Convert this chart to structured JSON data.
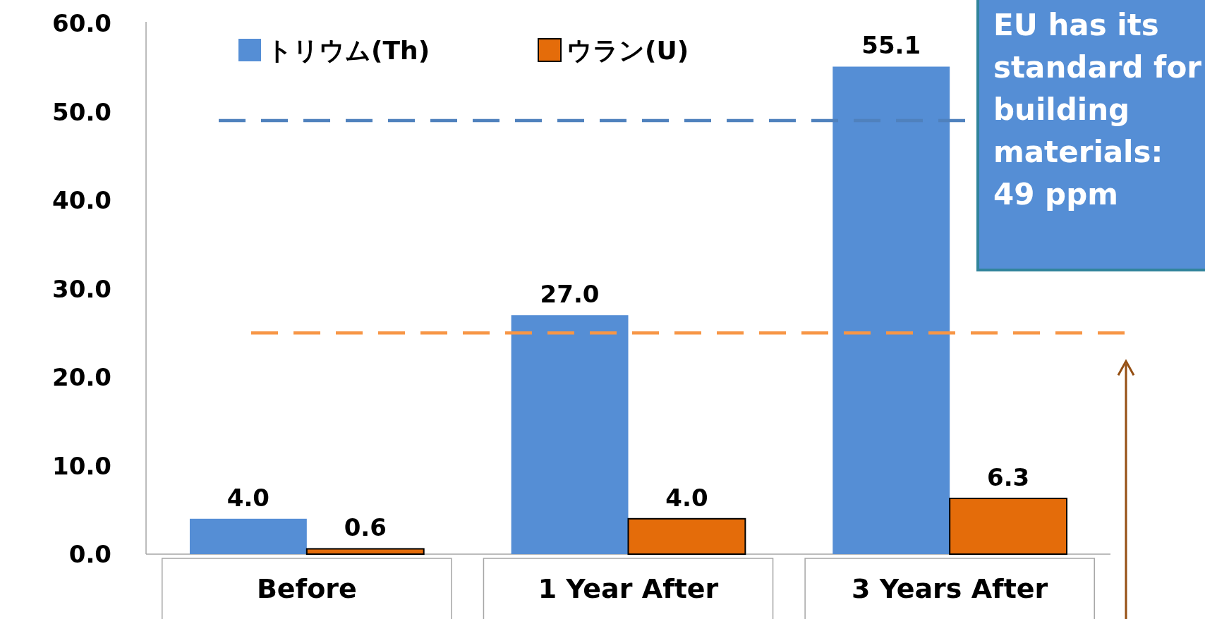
{
  "chart_data": {
    "type": "bar",
    "categories": [
      "Before",
      "1 Year After",
      "3 Years After"
    ],
    "series": [
      {
        "name": "トリウム(Th)",
        "color": "#558ed5",
        "values": [
          4.0,
          27.0,
          55.1
        ],
        "value_labels": [
          "4.0",
          "27.0",
          "55.1"
        ]
      },
      {
        "name": "ウラン(U)",
        "color": "#e46c0a",
        "values": [
          0.6,
          4.0,
          6.3
        ],
        "value_labels": [
          "0.6",
          "4.0",
          "6.3"
        ]
      }
    ],
    "ylim": [
      0,
      60
    ],
    "yticks": [
      {
        "value": 0,
        "label": "0.0"
      },
      {
        "value": 10,
        "label": "10.0"
      },
      {
        "value": 20,
        "label": "20.0"
      },
      {
        "value": 30,
        "label": "30.0"
      },
      {
        "value": 40,
        "label": "40.0"
      },
      {
        "value": 50,
        "label": "50.0"
      },
      {
        "value": 60,
        "label": "60.0"
      }
    ],
    "legend": "top",
    "ref_lines": [
      {
        "axis": "y",
        "value": 49,
        "label": "EU has its standard for building materials: 49 ppm",
        "color": "#4f81bd",
        "line_style": "dashed"
      },
      {
        "axis": "y",
        "value": 25,
        "color": "#f79646",
        "line_style": "dashed"
      }
    ]
  }
}
